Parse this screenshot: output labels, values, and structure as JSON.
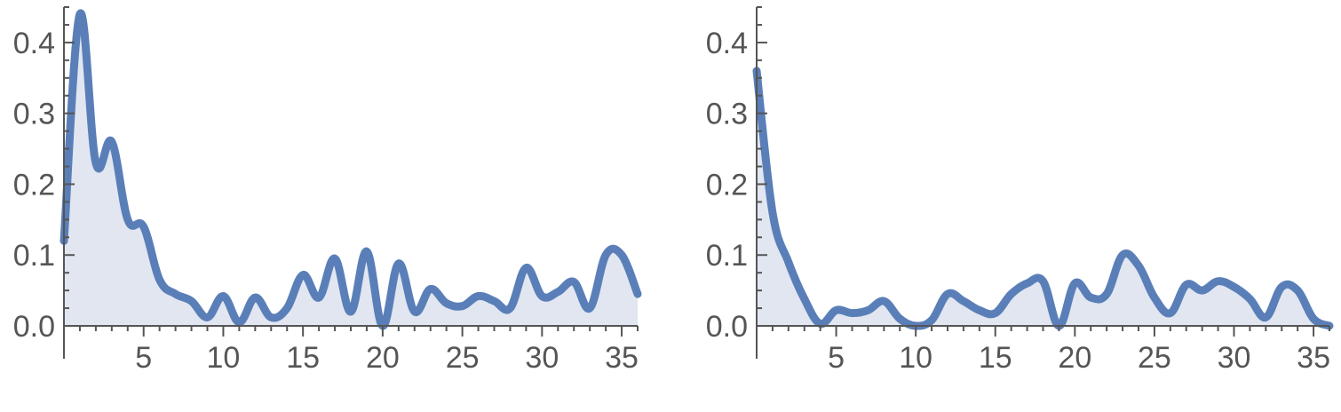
{
  "chart_data": [
    {
      "type": "area",
      "title": "",
      "xlabel": "",
      "ylabel": "",
      "xlim": [
        0,
        36
      ],
      "ylim": [
        0,
        0.45
      ],
      "grid": false,
      "x_ticks": [
        5,
        10,
        15,
        20,
        25,
        30,
        35
      ],
      "y_ticks": [
        0.0,
        0.1,
        0.2,
        0.3,
        0.4
      ],
      "x_tick_labels": [
        "5",
        "10",
        "15",
        "20",
        "25",
        "30",
        "35"
      ],
      "y_tick_labels": [
        "0.0",
        "0.1",
        "0.2",
        "0.3",
        "0.4"
      ],
      "series": [
        {
          "x": [
            0,
            1,
            2,
            3,
            4,
            5,
            6,
            7,
            8,
            9,
            10,
            11,
            12,
            13,
            14,
            15,
            16,
            17,
            18,
            19,
            20,
            21,
            22,
            23,
            24,
            25,
            26,
            27,
            28,
            29,
            30,
            31,
            32,
            33,
            34,
            35,
            36
          ],
          "values": [
            0.12,
            0.44,
            0.23,
            0.26,
            0.15,
            0.14,
            0.065,
            0.045,
            0.035,
            0.012,
            0.042,
            0.005,
            0.04,
            0.012,
            0.025,
            0.072,
            0.04,
            0.095,
            0.02,
            0.105,
            0.0,
            0.088,
            0.02,
            0.052,
            0.032,
            0.028,
            0.042,
            0.035,
            0.025,
            0.082,
            0.042,
            0.048,
            0.062,
            0.025,
            0.1,
            0.1,
            0.045
          ]
        }
      ]
    },
    {
      "type": "area",
      "title": "",
      "xlabel": "",
      "ylabel": "",
      "xlim": [
        0,
        36
      ],
      "ylim": [
        0,
        0.45
      ],
      "grid": false,
      "x_ticks": [
        5,
        10,
        15,
        20,
        25,
        30,
        35
      ],
      "y_ticks": [
        0.0,
        0.1,
        0.2,
        0.3,
        0.4
      ],
      "x_tick_labels": [
        "5",
        "10",
        "15",
        "20",
        "25",
        "30",
        "35"
      ],
      "y_tick_labels": [
        "0.0",
        "0.1",
        "0.2",
        "0.3",
        "0.4"
      ],
      "series": [
        {
          "x": [
            0,
            1,
            2,
            3,
            4,
            5,
            6,
            7,
            8,
            9,
            10,
            11,
            12,
            13,
            14,
            15,
            16,
            17,
            18,
            19,
            20,
            21,
            22,
            23,
            24,
            25,
            26,
            27,
            28,
            29,
            30,
            31,
            32,
            33,
            34,
            35,
            36
          ],
          "values": [
            0.36,
            0.16,
            0.09,
            0.038,
            0.003,
            0.022,
            0.018,
            0.022,
            0.035,
            0.01,
            0.0,
            0.008,
            0.045,
            0.035,
            0.022,
            0.018,
            0.045,
            0.06,
            0.063,
            0.0,
            0.06,
            0.04,
            0.045,
            0.1,
            0.085,
            0.04,
            0.018,
            0.058,
            0.05,
            0.063,
            0.055,
            0.038,
            0.012,
            0.055,
            0.05,
            0.01,
            0.0
          ]
        }
      ]
    }
  ],
  "colors": {
    "line": "#5a7fb8",
    "fill": "#e1e6f1",
    "axis": "#555555",
    "background": "#ffffff"
  }
}
